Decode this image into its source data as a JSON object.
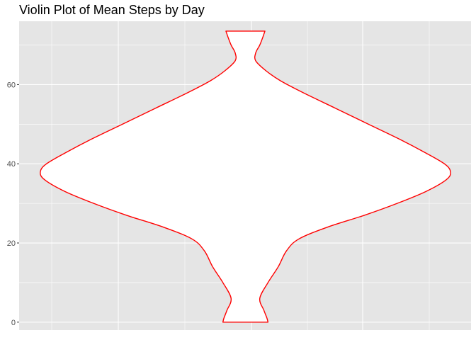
{
  "chart_data": {
    "type": "violin",
    "title": "Violin Plot of Mean Steps by Day",
    "xlabel": "",
    "ylabel": "",
    "x_tick_labels": [],
    "ylim": [
      -2,
      76
    ],
    "yticks": [
      0,
      20,
      40,
      60
    ],
    "grid": true,
    "legend": "none",
    "colors": {
      "panel_background": "#e5e5e5",
      "gridline": "#ffffff",
      "violin_outline": "#ff0000",
      "violin_fill": "#ffffff",
      "tick_text": "#4d4d4d",
      "tick_mark": "#333333"
    },
    "violin": {
      "min": 0.0,
      "max": 73.5,
      "density_profile": [
        {
          "y": 0.0,
          "half_width": 0.11
        },
        {
          "y": 1.0,
          "half_width": 0.105
        },
        {
          "y": 3.0,
          "half_width": 0.09
        },
        {
          "y": 6.0,
          "half_width": 0.07
        },
        {
          "y": 10.0,
          "half_width": 0.11
        },
        {
          "y": 14.0,
          "half_width": 0.16
        },
        {
          "y": 18.0,
          "half_width": 0.2
        },
        {
          "y": 21.0,
          "half_width": 0.26
        },
        {
          "y": 24.0,
          "half_width": 0.4
        },
        {
          "y": 27.0,
          "half_width": 0.58
        },
        {
          "y": 30.0,
          "half_width": 0.74
        },
        {
          "y": 33.0,
          "half_width": 0.88
        },
        {
          "y": 36.0,
          "half_width": 0.98
        },
        {
          "y": 38.0,
          "half_width": 1.0
        },
        {
          "y": 40.0,
          "half_width": 0.97
        },
        {
          "y": 43.0,
          "half_width": 0.87
        },
        {
          "y": 46.0,
          "half_width": 0.76
        },
        {
          "y": 50.0,
          "half_width": 0.6
        },
        {
          "y": 54.0,
          "half_width": 0.44
        },
        {
          "y": 58.0,
          "half_width": 0.28
        },
        {
          "y": 61.0,
          "half_width": 0.17
        },
        {
          "y": 63.5,
          "half_width": 0.1
        },
        {
          "y": 66.0,
          "half_width": 0.05
        },
        {
          "y": 68.0,
          "half_width": 0.05
        },
        {
          "y": 70.0,
          "half_width": 0.07
        },
        {
          "y": 72.0,
          "half_width": 0.085
        },
        {
          "y": 73.5,
          "half_width": 0.095
        }
      ]
    }
  }
}
